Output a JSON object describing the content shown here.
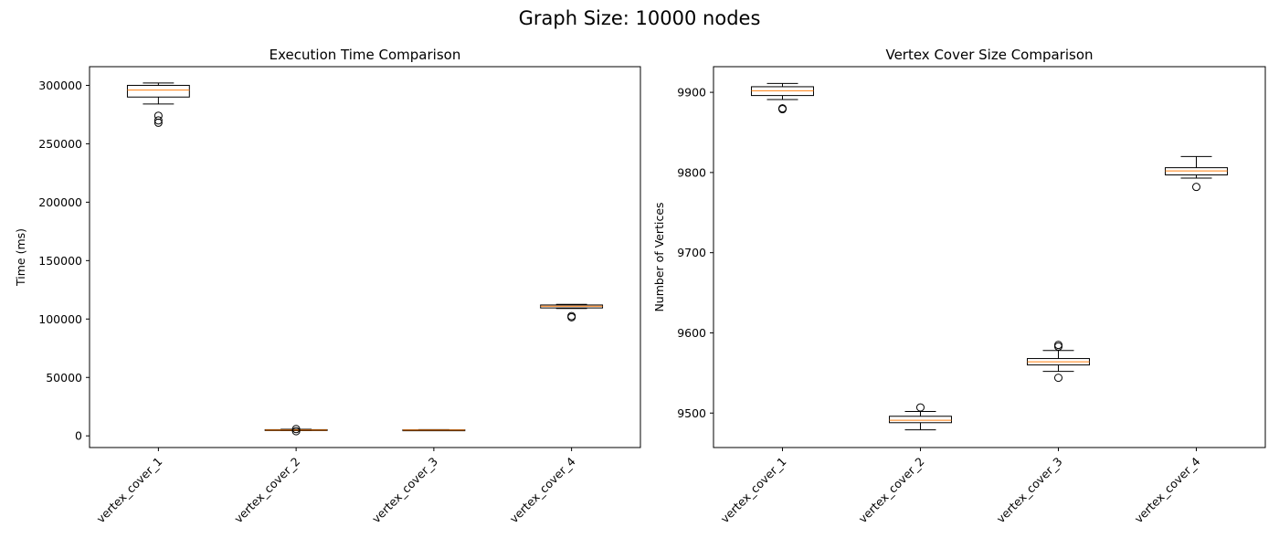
{
  "figure": {
    "title": "Graph Size: 10000 nodes"
  },
  "chart_data": [
    {
      "type": "box",
      "title": "Execution Time Comparison",
      "xlabel": "",
      "ylabel": "Time (ms)",
      "ylim": [
        -10000,
        316000
      ],
      "yticks": [
        0,
        50000,
        100000,
        150000,
        200000,
        250000,
        300000
      ],
      "yticklabels": [
        "0",
        "50000",
        "100000",
        "150000",
        "200000",
        "250000",
        "300000"
      ],
      "categories": [
        "vertex_cover_1",
        "vertex_cover_2",
        "vertex_cover_3",
        "vertex_cover_4"
      ],
      "boxes": [
        {
          "whisker_low": 284000,
          "q1": 290000,
          "median": 296000,
          "q3": 300000,
          "whisker_high": 302000,
          "outliers": [
            268000,
            270000,
            274000
          ]
        },
        {
          "whisker_low": 4500,
          "q1": 4800,
          "median": 5000,
          "q3": 5300,
          "whisker_high": 5600,
          "outliers": [
            4000,
            5800
          ]
        },
        {
          "whisker_low": 4700,
          "q1": 4850,
          "median": 5000,
          "q3": 5150,
          "whisker_high": 5300,
          "outliers": []
        },
        {
          "whisker_low": 109000,
          "q1": 109500,
          "median": 111000,
          "q3": 112000,
          "whisker_high": 112500,
          "outliers": [
            101500,
            102500
          ]
        }
      ],
      "grid": false
    },
    {
      "type": "box",
      "title": "Vertex Cover Size Comparison",
      "xlabel": "",
      "ylabel": "Number of Vertices",
      "ylim": [
        9457,
        9932
      ],
      "yticks": [
        9500,
        9600,
        9700,
        9800,
        9900
      ],
      "yticklabels": [
        "9500",
        "9600",
        "9700",
        "9800",
        "9900"
      ],
      "categories": [
        "vertex_cover_1",
        "vertex_cover_2",
        "vertex_cover_3",
        "vertex_cover_4"
      ],
      "boxes": [
        {
          "whisker_low": 9891,
          "q1": 9896,
          "median": 9902,
          "q3": 9907,
          "whisker_high": 9911,
          "outliers": [
            9879,
            9880
          ]
        },
        {
          "whisker_low": 9479,
          "q1": 9488,
          "median": 9491,
          "q3": 9496,
          "whisker_high": 9502,
          "outliers": [
            9507
          ]
        },
        {
          "whisker_low": 9552,
          "q1": 9560,
          "median": 9564,
          "q3": 9568,
          "whisker_high": 9578,
          "outliers": [
            9544,
            9583,
            9585
          ]
        },
        {
          "whisker_low": 9793,
          "q1": 9797,
          "median": 9802,
          "q3": 9806,
          "whisker_high": 9820,
          "outliers": [
            9782
          ]
        }
      ],
      "grid": false
    }
  ],
  "style": {
    "box_color": "#000000",
    "median_color": "#ff7f0e"
  }
}
